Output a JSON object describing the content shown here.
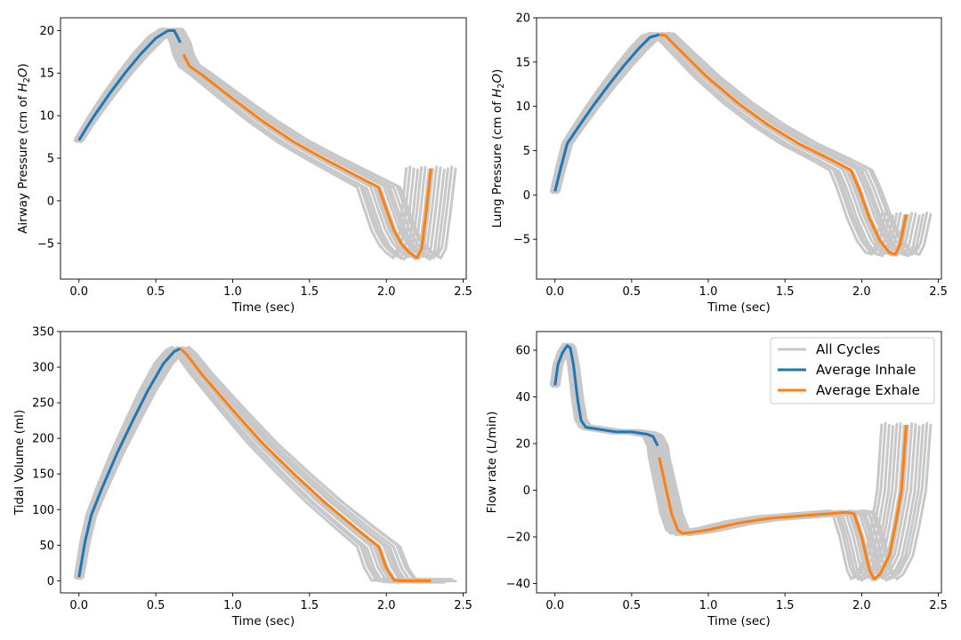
{
  "colors": {
    "cycles": "#c8c8c8",
    "inhale": "#1f77b4",
    "exhale": "#ff7f0e"
  },
  "legend": {
    "placement": "top-right of flow-rate panel",
    "items": [
      {
        "label": "All Cycles",
        "color": "#c8c8c8"
      },
      {
        "label": "Average Inhale",
        "color": "#1f77b4"
      },
      {
        "label": "Average Exhale",
        "color": "#ff7f0e"
      }
    ]
  },
  "chart_data": [
    {
      "type": "line",
      "id": "airway",
      "xlabel": "Time (sec)",
      "ylabel_main": "Airway Pressure (cm of ",
      "ylabel_sub_h": "H",
      "ylabel_sub_2": "2",
      "ylabel_sub_o": "O",
      "ylabel_close": ")",
      "xlim": [
        -0.12,
        2.52
      ],
      "ylim": [
        -9.2,
        21.5
      ],
      "xticks": [
        0.0,
        0.5,
        1.0,
        1.5,
        2.0,
        2.5
      ],
      "xtick_labels": [
        "0.0",
        "0.5",
        "1.0",
        "1.5",
        "2.0",
        "2.5"
      ],
      "yticks": [
        -5,
        0,
        5,
        10,
        15,
        20
      ],
      "ytick_labels": [
        "−5",
        "0",
        "5",
        "10",
        "15",
        "20"
      ],
      "series": [
        {
          "name": "Average Inhale",
          "x": [
            0,
            0.05,
            0.1,
            0.2,
            0.3,
            0.4,
            0.5,
            0.58,
            0.62,
            0.66
          ],
          "y": [
            7.1,
            8.6,
            10,
            12.6,
            15,
            17.2,
            19.1,
            20,
            20,
            18.6
          ]
        },
        {
          "name": "Average Exhale",
          "x": [
            0.68,
            0.72,
            0.8,
            1.0,
            1.2,
            1.4,
            1.6,
            1.8,
            1.95,
            2.0,
            2.05,
            2.1,
            2.15,
            2.2,
            2.23,
            2.26,
            2.29
          ],
          "y": [
            17.2,
            15.8,
            14.8,
            12,
            9.3,
            6.9,
            4.9,
            3,
            1.6,
            -1,
            -3.5,
            -5.1,
            -6.1,
            -6.7,
            -5.6,
            -1.2,
            3.8
          ]
        }
      ]
    },
    {
      "type": "line",
      "id": "lung",
      "xlabel": "Time (sec)",
      "ylabel_main": "Lung Pressure (cm of ",
      "ylabel_sub_h": "H",
      "ylabel_sub_2": "2",
      "ylabel_sub_o": "O",
      "ylabel_close": ")",
      "xlim": [
        -0.12,
        2.52
      ],
      "ylim": [
        -9.5,
        20
      ],
      "xticks": [
        0.0,
        0.5,
        1.0,
        1.5,
        2.0,
        2.5
      ],
      "xtick_labels": [
        "0.0",
        "0.5",
        "1.0",
        "1.5",
        "2.0",
        "2.5"
      ],
      "yticks": [
        -5,
        0,
        5,
        10,
        15,
        20
      ],
      "ytick_labels": [
        "−5",
        "0",
        "5",
        "10",
        "15",
        "20"
      ],
      "series": [
        {
          "name": "Average Inhale",
          "x": [
            0,
            0.04,
            0.08,
            0.15,
            0.25,
            0.35,
            0.45,
            0.55,
            0.62,
            0.68
          ],
          "y": [
            0.4,
            3.2,
            5.8,
            7.6,
            10.1,
            12.4,
            14.6,
            16.6,
            17.8,
            18.1
          ]
        },
        {
          "name": "Average Exhale",
          "x": [
            0.68,
            0.72,
            0.8,
            1.0,
            1.2,
            1.4,
            1.6,
            1.8,
            1.93,
            1.98,
            2.05,
            2.12,
            2.18,
            2.22,
            2.25,
            2.29
          ],
          "y": [
            18.1,
            18,
            16.6,
            13.2,
            10.3,
            7.8,
            5.7,
            4,
            2.8,
            0.8,
            -2.6,
            -5.2,
            -6.5,
            -6.7,
            -5.6,
            -2.2
          ]
        }
      ]
    },
    {
      "type": "line",
      "id": "volume",
      "xlabel": "Time (sec)",
      "ylabel": "Tidal Volume (ml)",
      "xlim": [
        -0.12,
        2.52
      ],
      "ylim": [
        -17,
        350
      ],
      "xticks": [
        0.0,
        0.5,
        1.0,
        1.5,
        2.0,
        2.5
      ],
      "xtick_labels": [
        "0.0",
        "0.5",
        "1.0",
        "1.5",
        "2.0",
        "2.5"
      ],
      "yticks": [
        0,
        50,
        100,
        150,
        200,
        250,
        300,
        350
      ],
      "ytick_labels": [
        "0",
        "50",
        "100",
        "150",
        "200",
        "250",
        "300",
        "350"
      ],
      "series": [
        {
          "name": "Average Inhale",
          "x": [
            0,
            0.04,
            0.08,
            0.15,
            0.25,
            0.35,
            0.45,
            0.55,
            0.62,
            0.66
          ],
          "y": [
            5,
            55,
            92,
            130,
            180,
            225,
            268,
            305,
            322,
            326
          ]
        },
        {
          "name": "Average Exhale",
          "x": [
            0.66,
            0.7,
            0.8,
            1.0,
            1.2,
            1.4,
            1.6,
            1.8,
            1.95,
            2.0,
            2.05,
            2.1,
            2.2,
            2.29
          ],
          "y": [
            326,
            318,
            290,
            240,
            192,
            150,
            110,
            74,
            48,
            18,
            1,
            0,
            0,
            0
          ]
        }
      ]
    },
    {
      "type": "line",
      "id": "flow",
      "xlabel": "Time (sec)",
      "ylabel": "Flow rate (L/min)",
      "xlim": [
        -0.12,
        2.52
      ],
      "ylim": [
        -44,
        68
      ],
      "xticks": [
        0.0,
        0.5,
        1.0,
        1.5,
        2.0,
        2.5
      ],
      "xtick_labels": [
        "0.0",
        "0.5",
        "1.0",
        "1.5",
        "2.0",
        "2.5"
      ],
      "yticks": [
        -40,
        -20,
        0,
        20,
        40,
        60
      ],
      "ytick_labels": [
        "−40",
        "−20",
        "0",
        "20",
        "40",
        "60"
      ],
      "series": [
        {
          "name": "Average Inhale",
          "x": [
            0,
            0.02,
            0.05,
            0.08,
            0.1,
            0.12,
            0.15,
            0.17,
            0.2,
            0.3,
            0.4,
            0.5,
            0.6,
            0.64,
            0.67
          ],
          "y": [
            45,
            54,
            59,
            62,
            61,
            54,
            38,
            30,
            27,
            26,
            25,
            25,
            24,
            23,
            19
          ]
        },
        {
          "name": "Average Exhale",
          "x": [
            0.68,
            0.72,
            0.76,
            0.8,
            0.83,
            0.9,
            1.0,
            1.2,
            1.4,
            1.6,
            1.8,
            1.9,
            1.95,
            2.0,
            2.05,
            2.08,
            2.12,
            2.18,
            2.22,
            2.26,
            2.29
          ],
          "y": [
            14,
            2,
            -10,
            -17,
            -18.5,
            -18,
            -17,
            -14,
            -12,
            -11,
            -10,
            -9.5,
            -10,
            -20,
            -34,
            -38,
            -36,
            -28,
            -15,
            0,
            28
          ]
        }
      ]
    }
  ]
}
